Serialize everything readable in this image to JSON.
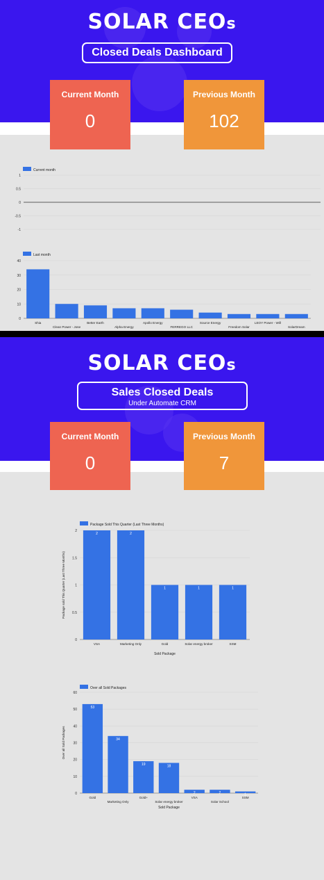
{
  "dashboard1": {
    "logo_main": "SOLAR CEO",
    "logo_suffix": "s",
    "title": "Closed Deals Dashboard",
    "current_label": "Current Month",
    "current_value": "0",
    "previous_label": "Previous Month",
    "previous_value": "102"
  },
  "dashboard2": {
    "logo_main": "SOLAR CEO",
    "logo_suffix": "s",
    "title": "Sales Closed Deals",
    "subtitle": "Under Automate CRM",
    "current_label": "Current Month",
    "current_value": "0",
    "previous_label": "Previous Month",
    "previous_value": "7"
  },
  "colors": {
    "hero_bg": "#3a16ee",
    "card_red": "#ee6451",
    "card_orange": "#f0963a",
    "bar": "#3472e4"
  },
  "chart_data": [
    {
      "type": "line",
      "legend": "Current month",
      "ylim": [
        -1,
        1
      ],
      "yticks": [
        "1",
        "0.5",
        "0",
        "-0.5",
        "-1"
      ],
      "values": []
    },
    {
      "type": "bar",
      "legend": "Last month",
      "ylim": [
        0,
        40
      ],
      "yticks": [
        "40",
        "30",
        "20",
        "10",
        "0"
      ],
      "categories": [
        "Shia",
        "Clean Power - Jose",
        "Better Earth",
        "Alpha Energy",
        "Apollo Energy",
        "FERREGO LLC",
        "Source Energy",
        "Freedom Solar",
        "LEOY Power - Will",
        "SolarDream"
      ],
      "values": [
        34,
        10,
        9,
        7,
        7,
        6,
        4,
        3,
        3,
        3
      ]
    },
    {
      "type": "bar",
      "legend": "Package Sold This Quarter (Last Three Months)",
      "ylabel": "Package sold This Quarter (Last Three Months)",
      "xlabel": "Sold Package",
      "ylim": [
        0,
        2
      ],
      "yticks": [
        "2",
        "1.5",
        "1",
        "0.5",
        "0"
      ],
      "categories": [
        "VSA",
        "Marketing Only",
        "Gold",
        "Solar energy broker",
        "SSM"
      ],
      "values": [
        2,
        2,
        1,
        1,
        1
      ]
    },
    {
      "type": "bar",
      "legend": "Over all Sold Packages",
      "ylabel": "Over all Sold Packages",
      "xlabel": "Sold Package",
      "ylim": [
        0,
        60
      ],
      "yticks": [
        "60",
        "50",
        "40",
        "30",
        "20",
        "10",
        "0"
      ],
      "categories": [
        "Gold",
        "Marketing Only",
        "Gold+",
        "Solar energy broker",
        "VSA",
        "Solar School",
        "SSM"
      ],
      "values": [
        53,
        34,
        19,
        18,
        2,
        2,
        1
      ]
    }
  ]
}
